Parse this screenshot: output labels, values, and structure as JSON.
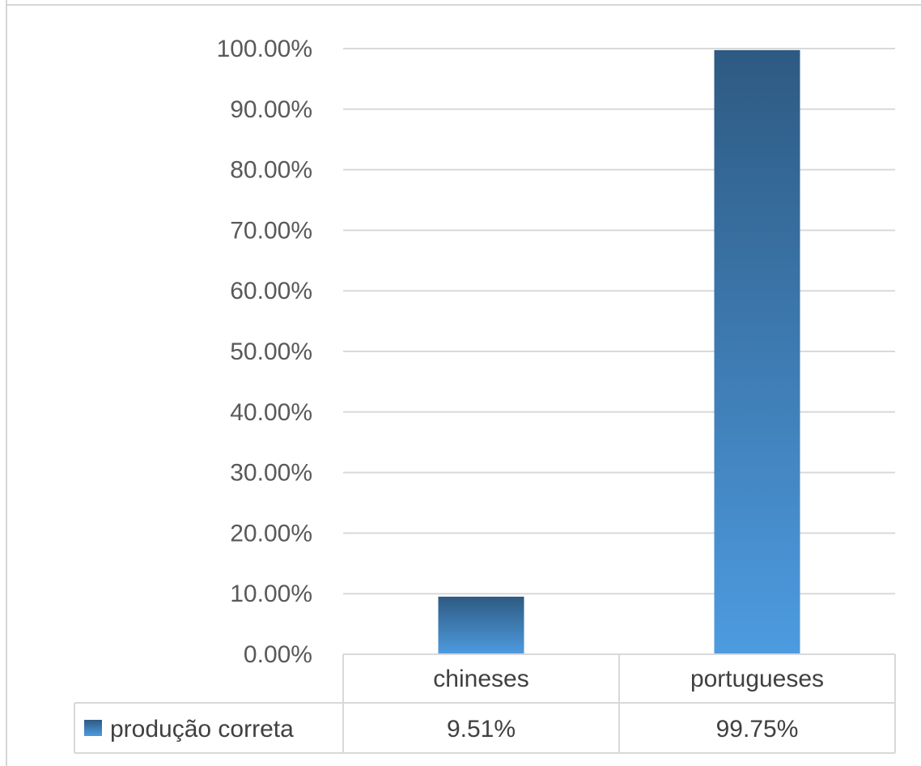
{
  "chart_data": {
    "type": "bar",
    "categories": [
      "chineses",
      "portugueses"
    ],
    "series": [
      {
        "name": "produção correta",
        "values": [
          9.51,
          99.75
        ],
        "value_labels": [
          "9.51%",
          "99.75%"
        ]
      }
    ],
    "y_ticks": [
      "0.00%",
      "10.00%",
      "20.00%",
      "30.00%",
      "40.00%",
      "50.00%",
      "60.00%",
      "70.00%",
      "80.00%",
      "90.00%",
      "100.00%"
    ],
    "ylim": [
      0,
      100
    ],
    "grid": true,
    "legend": "data-table",
    "colors": {
      "bar_top": "#2e5a82",
      "bar_bottom": "#4d9be0",
      "grid": "#d9d9d9",
      "text": "#404040"
    }
  }
}
